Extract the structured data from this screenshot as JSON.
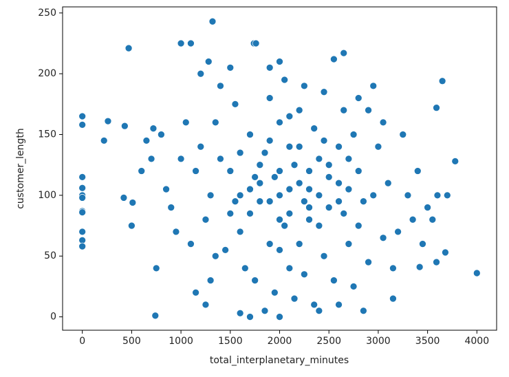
{
  "chart_data": {
    "type": "scatter",
    "xlabel": "total_interplanetary_minutes",
    "ylabel": "customer_length",
    "color": "#1f77b4",
    "grid": false,
    "xlim": [
      -200,
      4200
    ],
    "ylim": [
      -11,
      255
    ],
    "xticks": [
      0,
      500,
      1000,
      1500,
      2000,
      2500,
      3000,
      3500,
      4000
    ],
    "yticks": [
      0,
      50,
      100,
      150,
      200,
      250
    ],
    "x": [
      0,
      0,
      0,
      0,
      0,
      0,
      0,
      0,
      0,
      0,
      0,
      220,
      260,
      420,
      430,
      470,
      500,
      510,
      740,
      1000,
      1100,
      1320,
      1740,
      1760,
      4000,
      3780,
      3650,
      3590,
      3680,
      3590,
      3420,
      2650,
      2550,
      1500,
      1800,
      2100,
      2300,
      2600,
      1900,
      2200,
      2400,
      2000,
      1700,
      1600,
      2500,
      2800,
      1300,
      3000,
      2100,
      1900,
      2300,
      2700,
      1400,
      1750,
      2050,
      2350,
      2650,
      1550,
      2950,
      1250,
      3100,
      2150,
      1850,
      2450,
      1650,
      2250,
      2750,
      1350,
      3200,
      1150,
      2900,
      1950,
      2550,
      2000,
      2200,
      2400,
      1800,
      2600,
      1600,
      2100,
      2300,
      1700,
      2500,
      1450,
      2850,
      1900,
      2250,
      2650,
      1550,
      3050,
      1200,
      2150,
      2450,
      1000,
      3300,
      900,
      3400,
      1100,
      3150,
      2050,
      1750,
      2350,
      2750,
      1300,
      2900,
      1400,
      2800,
      1050,
      3250,
      950,
      3350,
      1850,
      2400,
      2000,
      2200,
      1900,
      2100,
      2300,
      1800,
      2500,
      1700,
      2600,
      2000,
      2200,
      2400,
      1600,
      2700,
      1500,
      2800,
      2000,
      2100,
      1950,
      2250,
      850,
      800,
      750,
      700,
      3500,
      3550,
      3450,
      3600,
      1200,
      1280,
      1500,
      2950,
      1900,
      2000,
      3050,
      1150,
      1250,
      1600,
      1700,
      2000,
      600,
      650,
      720,
      3700,
      3150,
      2850,
      2600,
      1350,
      2700,
      2450
    ],
    "y": [
      165,
      158,
      115,
      106,
      100,
      98,
      87,
      86,
      70,
      63,
      58,
      145,
      161,
      98,
      157,
      221,
      75,
      94,
      1,
      225,
      225,
      243,
      225,
      225,
      36,
      128,
      194,
      172,
      53,
      45,
      41,
      217,
      212,
      120,
      95,
      140,
      80,
      110,
      60,
      170,
      130,
      100,
      150,
      70,
      90,
      120,
      100,
      140,
      40,
      180,
      105,
      60,
      130,
      115,
      75,
      155,
      85,
      95,
      100,
      80,
      110,
      125,
      135,
      50,
      40,
      190,
      150,
      160,
      70,
      120,
      170,
      20,
      30,
      160,
      60,
      100,
      110,
      140,
      100,
      85,
      120,
      85,
      125,
      55,
      95,
      145,
      35,
      170,
      175,
      65,
      140,
      15,
      185,
      130,
      100,
      90,
      120,
      60,
      40,
      195,
      30,
      10,
      25,
      30,
      45,
      190,
      180,
      160,
      150,
      70,
      80,
      5,
      5,
      120,
      110,
      95,
      105,
      90,
      125,
      115,
      105,
      95,
      80,
      140,
      75,
      135,
      105,
      85,
      75,
      55,
      165,
      115,
      95,
      105,
      150,
      40,
      130,
      90,
      80,
      60,
      100,
      200,
      210,
      205,
      190,
      205,
      210,
      160,
      20,
      10,
      3,
      0,
      0,
      120,
      145,
      155,
      100,
      15,
      5,
      10,
      50,
      130,
      145
    ]
  }
}
